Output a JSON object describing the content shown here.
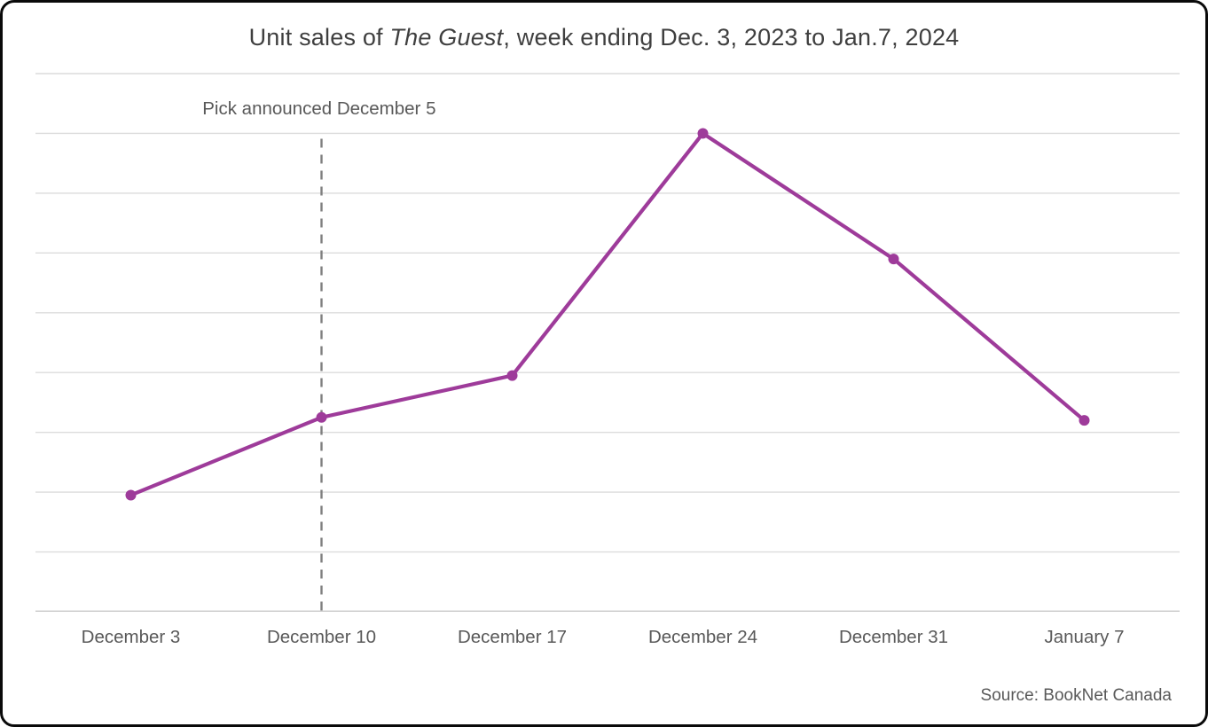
{
  "frame": {
    "background": "#ffffff",
    "border_color": "#0a0a0a"
  },
  "title": {
    "prefix": "Unit sales of ",
    "italic": "The Guest",
    "suffix": ", week ending Dec. 3, 2023 to Jan.7, 2024"
  },
  "annotation": {
    "text": "Pick announced December 5"
  },
  "source": {
    "text": "Source: BookNet Canada"
  },
  "chart_data": {
    "type": "line",
    "title": "Unit sales of The Guest, week ending Dec. 3, 2023 to Jan.7, 2024",
    "categories": [
      "December 3",
      "December 10",
      "December 17",
      "December 24",
      "December 31",
      "January 7"
    ],
    "series": [
      {
        "name": "Unit sales",
        "color": "#9e3b9a",
        "marker": "circle",
        "values": [
          1.95,
          3.25,
          3.95,
          8.0,
          5.9,
          3.2
        ]
      }
    ],
    "ylim": [
      0,
      9
    ],
    "y_axis": {
      "tick_labels_visible": false,
      "note": "values estimated in gridline units; one unit per horizontal gridline"
    },
    "gridlines": {
      "orientation": "horizontal",
      "step": 1,
      "color": "#dcdcdc"
    },
    "axis_line_color": "#c8c8c8",
    "legend": "none",
    "annotation": {
      "text": "Pick announced December 5",
      "at_category": "December 10",
      "line": "vertical-dashed",
      "line_color": "#7f7f7f"
    },
    "source": "Source: BookNet Canada",
    "text_colors": {
      "title": "#3f3f3f",
      "labels": "#595959"
    }
  }
}
